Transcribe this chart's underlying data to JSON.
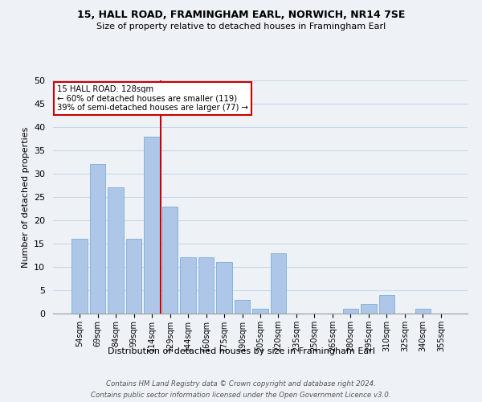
{
  "title1": "15, HALL ROAD, FRAMINGHAM EARL, NORWICH, NR14 7SE",
  "title2": "Size of property relative to detached houses in Framingham Earl",
  "xlabel": "Distribution of detached houses by size in Framingham Earl",
  "ylabel": "Number of detached properties",
  "categories": [
    "54sqm",
    "69sqm",
    "84sqm",
    "99sqm",
    "114sqm",
    "129sqm",
    "144sqm",
    "160sqm",
    "175sqm",
    "190sqm",
    "205sqm",
    "220sqm",
    "235sqm",
    "250sqm",
    "265sqm",
    "280sqm",
    "295sqm",
    "310sqm",
    "325sqm",
    "340sqm",
    "355sqm"
  ],
  "values": [
    16,
    32,
    27,
    16,
    38,
    23,
    12,
    12,
    11,
    3,
    1,
    13,
    0,
    0,
    0,
    1,
    2,
    4,
    0,
    1,
    0
  ],
  "bar_color": "#aec6e8",
  "bar_edge_color": "#7aafd4",
  "vline_color": "#cc0000",
  "vline_x_index": 5,
  "annotation_text": "15 HALL ROAD: 128sqm\n← 60% of detached houses are smaller (119)\n39% of semi-detached houses are larger (77) →",
  "annotation_box_facecolor": "#ffffff",
  "annotation_box_edgecolor": "#cc0000",
  "footer1": "Contains HM Land Registry data © Crown copyright and database right 2024.",
  "footer2": "Contains public sector information licensed under the Open Government Licence v3.0.",
  "bg_color": "#eef2f7",
  "grid_color": "#c8d8e8",
  "ylim": [
    0,
    50
  ],
  "yticks": [
    0,
    5,
    10,
    15,
    20,
    25,
    30,
    35,
    40,
    45,
    50
  ]
}
